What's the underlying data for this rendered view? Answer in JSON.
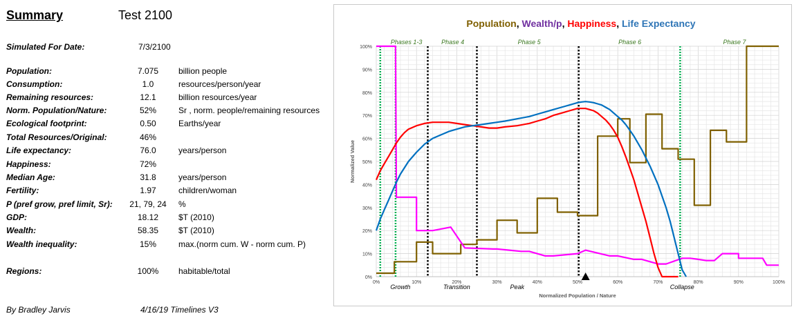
{
  "summary": {
    "title": "Summary",
    "run_name": "Test 2100",
    "simulated_label": "Simulated For Date:",
    "simulated_value": "7/3/2100",
    "rows": [
      {
        "label": "Population:",
        "value": "7.075",
        "unit": "billion people"
      },
      {
        "label": "Consumption:",
        "value": "1.0",
        "unit": "resources/person/year"
      },
      {
        "label": "Remaining resources:",
        "value": "12.1",
        "unit": "billion resources/year"
      },
      {
        "label": "Norm. Population/Nature:",
        "value": "52%",
        "unit": "Sr , norm. people/remaining resources"
      },
      {
        "label": "Ecological footprint:",
        "value": "0.50",
        "unit": "Earths/year"
      },
      {
        "label": "Total Resources/Original:",
        "value": "46%",
        "unit": ""
      },
      {
        "label": "Life expectancy:",
        "value": "76.0",
        "unit": "years/person"
      },
      {
        "label": "Happiness:",
        "value": "72%",
        "unit": ""
      },
      {
        "label": "Median Age:",
        "value": "31.8",
        "unit": "years/person"
      },
      {
        "label": "Fertility:",
        "value": "1.97",
        "unit": "children/woman"
      },
      {
        "label": "P (pref grow, pref limit, Sr):",
        "value": "21, 79, 24",
        "unit": "%"
      },
      {
        "label": "GDP:",
        "value": "18.12",
        "unit": "$T (2010)"
      },
      {
        "label": "Wealth:",
        "value": "58.35",
        "unit": "$T (2010)"
      },
      {
        "label": "Wealth inequality:",
        "value": "15%",
        "unit": "max.(norm cum. W - norm cum. P)"
      }
    ],
    "regions": {
      "label": "Regions:",
      "value": "100%",
      "unit": "habitable/total"
    },
    "author": "By Bradley Jarvis",
    "date_version": "4/16/19  Timelines V3"
  },
  "chart_data": {
    "type": "line",
    "title_parts": [
      {
        "text": "Population",
        "color": "#7f5f00"
      },
      {
        "text": ", ",
        "color": "#000000"
      },
      {
        "text": "Wealth/p",
        "color": "#7030a0"
      },
      {
        "text": ", ",
        "color": "#000000"
      },
      {
        "text": "Happiness",
        "color": "#ff0000"
      },
      {
        "text": ", ",
        "color": "#000000"
      },
      {
        "text": "Life Expectancy",
        "color": "#2e75b6"
      }
    ],
    "xlabel": "Normalized Population / Nature",
    "ylabel": "Normalized Value",
    "xlim": [
      0,
      100
    ],
    "ylim": [
      0,
      100
    ],
    "x_ticks": [
      "0%",
      "10%",
      "20%",
      "30%",
      "40%",
      "50%",
      "60%",
      "70%",
      "80%",
      "90%",
      "100%"
    ],
    "y_ticks": [
      "0%",
      "10%",
      "20%",
      "30%",
      "40%",
      "50%",
      "60%",
      "70%",
      "80%",
      "90%",
      "100%"
    ],
    "grid": true,
    "phase_labels": [
      {
        "text": "Phases 1-3",
        "x": 7.5
      },
      {
        "text": "Phase 4",
        "x": 19
      },
      {
        "text": "Phase 5",
        "x": 38
      },
      {
        "text": "Phase 6",
        "x": 63
      },
      {
        "text": "Phase 7",
        "x": 89
      }
    ],
    "stage_labels": [
      {
        "text": "Growth",
        "x": 6
      },
      {
        "text": "Transition",
        "x": 20
      },
      {
        "text": "Peak",
        "x": 35
      },
      {
        "text": "Collapse",
        "x": 76
      }
    ],
    "vlines": [
      {
        "x": 1,
        "style": "green"
      },
      {
        "x": 4.8,
        "style": "green"
      },
      {
        "x": 12.8,
        "style": "black"
      },
      {
        "x": 25,
        "style": "black"
      },
      {
        "x": 50.3,
        "style": "black"
      },
      {
        "x": 75.5,
        "style": "green"
      }
    ],
    "marker": {
      "x": 52,
      "shape": "triangle"
    },
    "series": [
      {
        "name": "Population",
        "color": "#7f6000",
        "x": [
          0,
          4.5,
          4.5,
          10,
          10,
          14,
          14,
          21,
          21,
          25,
          25,
          30,
          30,
          35,
          35,
          40,
          40,
          45,
          45,
          50,
          50,
          55,
          55,
          60,
          60,
          63,
          63,
          67,
          67,
          71,
          71,
          75,
          75,
          79,
          79,
          83,
          83,
          87,
          87,
          92,
          92,
          96,
          96,
          100
        ],
        "y": [
          1.5,
          1.5,
          6.5,
          6.5,
          15,
          15,
          10,
          10,
          14,
          14,
          16,
          16,
          24.5,
          24.5,
          19,
          19,
          34,
          34,
          28,
          28,
          26.5,
          26.5,
          61,
          61,
          68.5,
          68.5,
          49.5,
          49.5,
          70.5,
          70.5,
          55.5,
          55.5,
          51,
          51,
          31,
          31,
          63.5,
          63.5,
          58.5,
          58.5,
          100,
          100,
          100,
          100
        ]
      },
      {
        "name": "Wealth/p",
        "color": "#ff00ff",
        "x": [
          0,
          4,
          4.2,
          4.8,
          5,
          10,
          10,
          14,
          14,
          18.5,
          18.5,
          22,
          22,
          29,
          30,
          36,
          38,
          42,
          44,
          50,
          52,
          58,
          60,
          64,
          66,
          70,
          72,
          76,
          78,
          80,
          82,
          84,
          86,
          90,
          90,
          92,
          96,
          97,
          100
        ],
        "y": [
          100,
          100,
          100,
          100,
          34.5,
          34.5,
          20,
          20,
          20,
          21.5,
          21.5,
          12.5,
          12.5,
          12,
          12,
          11,
          11,
          9,
          9,
          10,
          11.5,
          9,
          9,
          7.5,
          7.5,
          5.5,
          5.5,
          8,
          8,
          7.5,
          7,
          7,
          10,
          10,
          8,
          8,
          8,
          5,
          5
        ]
      },
      {
        "name": "Happiness",
        "color": "#ff0000",
        "x": [
          0,
          1,
          2,
          3,
          4,
          5,
          6,
          7,
          8,
          10,
          12,
          14,
          16,
          18,
          20,
          22,
          24,
          26,
          28,
          30,
          32,
          35,
          38,
          40,
          42,
          44,
          46,
          48,
          50,
          51,
          52,
          53,
          54,
          55,
          56,
          57,
          58,
          59,
          60,
          61,
          62,
          63,
          64,
          65,
          66,
          67,
          68,
          69,
          70,
          71,
          72,
          73,
          74,
          75
        ],
        "y": [
          42,
          46,
          49,
          52,
          55,
          58,
          60.5,
          62.5,
          64,
          65.5,
          66.5,
          67,
          67,
          67,
          66.5,
          66,
          65.5,
          65,
          64.5,
          64.5,
          65,
          65.5,
          66.5,
          67.5,
          68.5,
          70,
          71,
          72,
          73,
          73,
          73,
          72.5,
          72,
          71,
          69.5,
          68,
          66,
          63.5,
          60.5,
          56.5,
          52,
          47,
          42,
          36,
          30,
          24,
          17,
          10,
          4,
          0,
          0,
          0,
          0,
          0
        ]
      },
      {
        "name": "Life Expectancy",
        "color": "#0070c0",
        "x": [
          0,
          1,
          2,
          3,
          4,
          5,
          6,
          8,
          10,
          12,
          14,
          16,
          18,
          20,
          22,
          24,
          26,
          28,
          30,
          32,
          35,
          38,
          40,
          42,
          44,
          46,
          48,
          50,
          51,
          52,
          53,
          54,
          55,
          56,
          57,
          58,
          59,
          60,
          61,
          62,
          63,
          64,
          65,
          66,
          67,
          68,
          69,
          70,
          71,
          72,
          73,
          74,
          75,
          76,
          77
        ],
        "y": [
          20,
          25,
          29,
          33,
          37,
          41,
          44.5,
          50,
          54,
          57.5,
          60,
          61.5,
          63,
          64,
          65,
          65.5,
          66,
          66.5,
          67,
          67.5,
          68.5,
          69.5,
          70.5,
          71.5,
          72.5,
          73.5,
          74.5,
          75.5,
          75.8,
          76,
          75.8,
          75.5,
          75,
          74.5,
          73.5,
          72.5,
          71,
          69.5,
          68,
          66,
          63.5,
          61,
          58,
          55,
          51.5,
          48,
          44,
          40,
          35,
          30,
          24,
          17,
          10,
          3,
          0
        ]
      }
    ]
  }
}
